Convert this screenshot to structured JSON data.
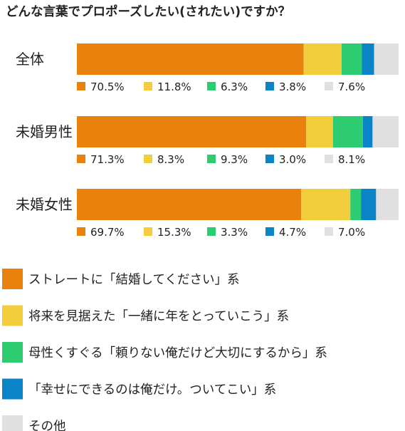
{
  "chart_data": {
    "type": "bar",
    "stacked": true,
    "orientation": "horizontal",
    "title": "どんな言葉でプロポーズしたい(されたい)ですか？",
    "categories": [
      "全体",
      "未婚男性",
      "未婚女性"
    ],
    "series": [
      {
        "name": "ストレートに「結婚してください」系",
        "color": "#E8820C",
        "values": [
          70.5,
          71.3,
          69.7
        ]
      },
      {
        "name": "将来を見据えた「一緒に年をとっていこう」系",
        "color": "#F3CE3C",
        "values": [
          11.8,
          8.3,
          15.3
        ]
      },
      {
        "name": "母性くすぐる「頼りない俺だけど大切にするから」系",
        "color": "#2ECC71",
        "values": [
          6.3,
          9.3,
          3.3
        ]
      },
      {
        "name": "「幸せにできるのは俺だけ。ついてこい」系",
        "color": "#0A84C6",
        "values": [
          3.8,
          3.0,
          4.7
        ]
      },
      {
        "name": "その他",
        "color": "#E0E0E0",
        "values": [
          7.6,
          8.1,
          7.0
        ]
      }
    ],
    "data_labels": [
      [
        "70.5%",
        "11.8%",
        "6.3%",
        "3.8%",
        "7.6%"
      ],
      [
        "71.3%",
        "8.3%",
        "9.3%",
        "3.0%",
        "8.1%"
      ],
      [
        "69.7%",
        "15.3%",
        "3.3%",
        "4.7%",
        "7.0%"
      ]
    ],
    "xlim": [
      0,
      100
    ],
    "grid": false,
    "legend_position": "bottom"
  }
}
